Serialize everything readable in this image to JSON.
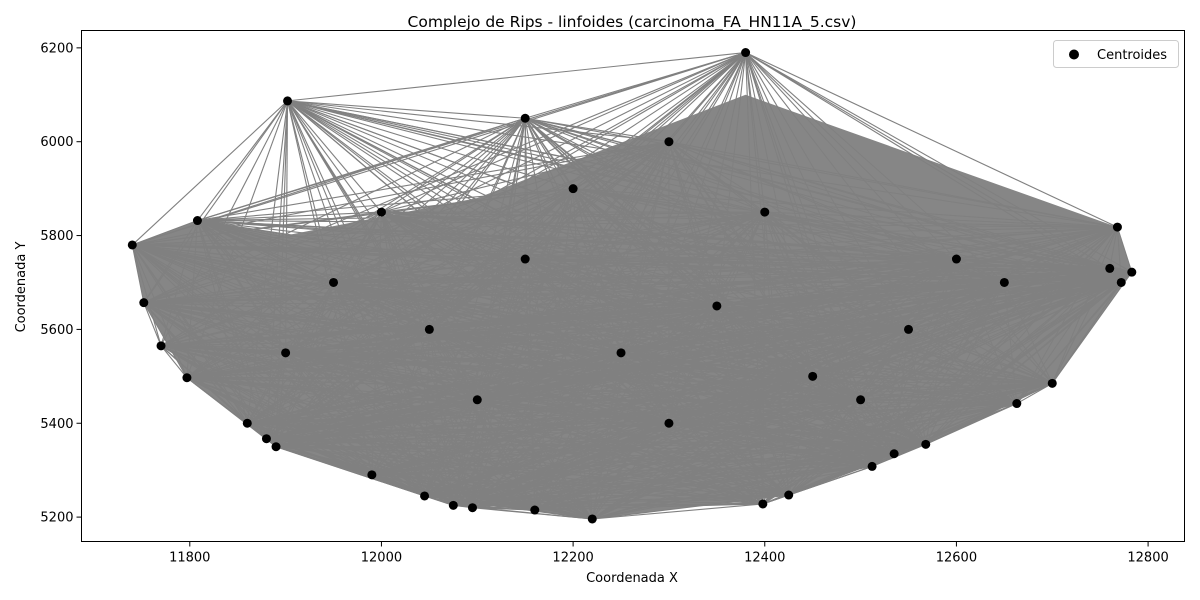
{
  "chart_data": {
    "type": "scatter",
    "title": "Complejo de Rips - linfoides (carcinoma_FA_HN11A_5.csv)",
    "xlabel": "Coordenada X",
    "ylabel": "Coordenada Y",
    "xlim": [
      11687,
      12838
    ],
    "ylim": [
      5148,
      6237
    ],
    "xticks": [
      11800,
      12000,
      12200,
      12400,
      12600,
      12800
    ],
    "yticks": [
      5200,
      5400,
      5600,
      5800,
      6000,
      6200
    ],
    "xtick_labels": [
      "11800",
      "12000",
      "12200",
      "12400",
      "12600",
      "12800"
    ],
    "ytick_labels": [
      "5200",
      "5400",
      "5600",
      "5800",
      "6000",
      "6200"
    ],
    "legend": {
      "position": "top-right",
      "entries": [
        "Centroides"
      ]
    },
    "grid": false,
    "point_color": "#000000",
    "edge_color": "#808080",
    "series": [
      {
        "name": "Centroides",
        "points": [
          [
            11740,
            5780
          ],
          [
            11752,
            5657
          ],
          [
            11770,
            5565
          ],
          [
            11797,
            5497
          ],
          [
            11808,
            5832
          ],
          [
            11860,
            5400
          ],
          [
            11880,
            5367
          ],
          [
            11890,
            5350
          ],
          [
            11902,
            6087
          ],
          [
            11990,
            5290
          ],
          [
            12045,
            5245
          ],
          [
            12075,
            5225
          ],
          [
            12095,
            5220
          ],
          [
            12160,
            5215
          ],
          [
            12220,
            5196
          ],
          [
            12380,
            6190
          ],
          [
            12398,
            5228
          ],
          [
            12425,
            5247
          ],
          [
            12512,
            5308
          ],
          [
            12535,
            5335
          ],
          [
            12568,
            5355
          ],
          [
            12663,
            5442
          ],
          [
            12700,
            5485
          ],
          [
            12768,
            5818
          ],
          [
            12772,
            5700
          ],
          [
            12783,
            5722
          ],
          [
            12760,
            5730
          ],
          [
            11950,
            5700
          ],
          [
            12050,
            5600
          ],
          [
            12150,
            5750
          ],
          [
            12250,
            5550
          ],
          [
            12350,
            5650
          ],
          [
            12450,
            5500
          ],
          [
            12550,
            5600
          ],
          [
            12650,
            5700
          ],
          [
            12100,
            5450
          ],
          [
            12300,
            5400
          ],
          [
            12500,
            5450
          ],
          [
            11900,
            5550
          ],
          [
            12000,
            5850
          ],
          [
            12200,
            5900
          ],
          [
            12400,
            5850
          ],
          [
            12600,
            5750
          ],
          [
            12300,
            6000
          ],
          [
            12150,
            6050
          ]
        ]
      }
    ]
  }
}
